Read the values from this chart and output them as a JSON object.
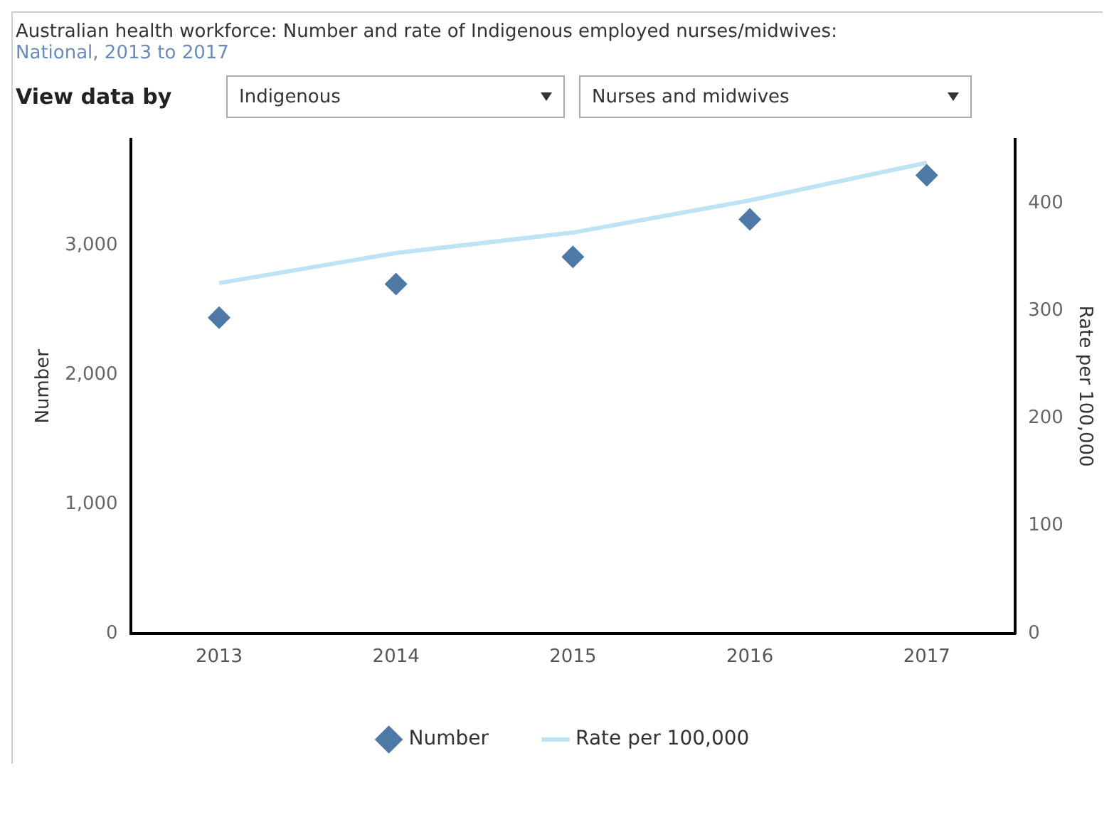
{
  "chart_data": {
    "type": "scatter",
    "title": "Australian health workforce: Number  and rate of Indigenous employed nurses/midwives:",
    "subtitle": "National, 2013 to 2017",
    "annotations": [
      "View data by",
      "Indigenous",
      "Nurses and midwives"
    ],
    "categories": [
      "2013",
      "2014",
      "2015",
      "2016",
      "2017"
    ],
    "ylabel": "Number",
    "y2label": "Rate per 100,000",
    "ylim": [
      0,
      3820
    ],
    "yticks": [
      0,
      {
        "value": 1000,
        "label": "1,000"
      },
      {
        "value": 2000,
        "label": "2,000"
      },
      {
        "value": 3000,
        "label": "3,000"
      }
    ],
    "y2lim": [
      0,
      460
    ],
    "y2ticks": [
      0,
      100,
      200,
      300,
      400
    ],
    "grid": false,
    "legend": "bottom",
    "series": [
      {
        "name": "Number",
        "marker": "diamond",
        "color": "#4e79a7",
        "values": [
          2440,
          2700,
          2910,
          3200,
          3540
        ]
      },
      {
        "name": "Rate per 100,000",
        "type": "line",
        "axis": "y2",
        "marker": "none",
        "color": "#bde3f4",
        "values": [
          326,
          354,
          373,
          403,
          438
        ]
      }
    ]
  }
}
